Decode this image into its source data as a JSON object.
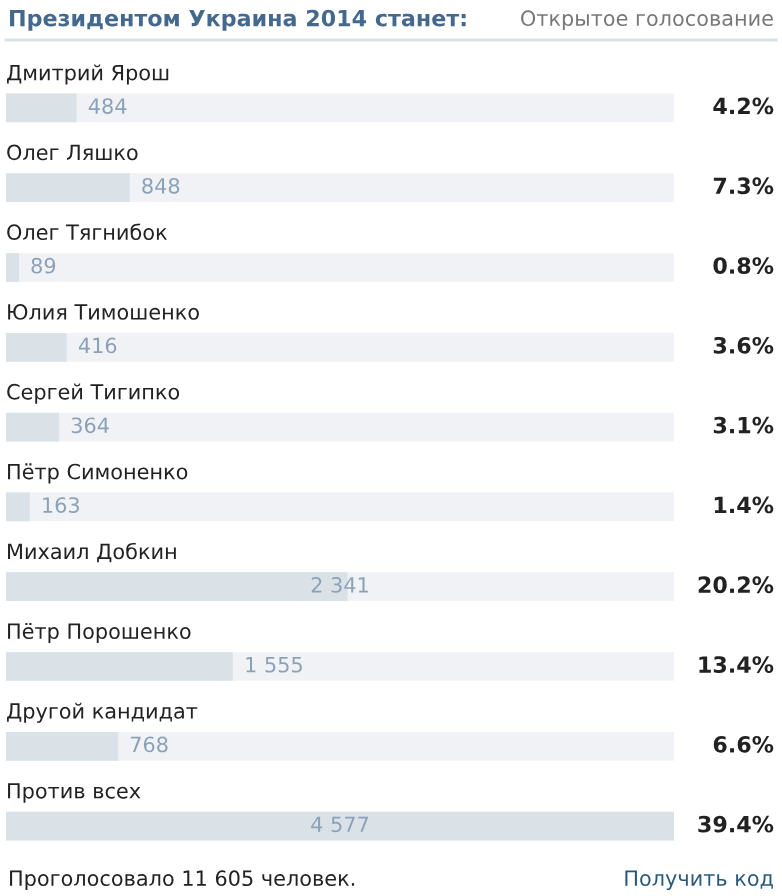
{
  "chart_data": {
    "type": "bar",
    "orientation": "horizontal",
    "title": "Президентом Украина 2014 станет:",
    "subtitle": "Открытое голосование",
    "categories": [
      "Дмитрий Ярош",
      "Олег Ляшко",
      "Олег Тягнибок",
      "Юлия Тимошенко",
      "Сергей Тигипко",
      "Пётр Симоненко",
      "Михаил Добкин",
      "Пётр Порошенко",
      "Другой кандидат",
      "Против всех"
    ],
    "values": [
      484,
      848,
      89,
      416,
      364,
      163,
      2341,
      1555,
      768,
      4577
    ],
    "value_labels": [
      "484",
      "848",
      "89",
      "416",
      "364",
      "163",
      "2 341",
      "1 555",
      "768",
      "4 577"
    ],
    "color": "#dae2e8",
    "xlim": [
      0,
      4577
    ],
    "tick_labels": false,
    "annotations": [
      "4.2%",
      "7.3%",
      "0.8%",
      "3.6%",
      "3.1%",
      "1.4%",
      "20.2%",
      "13.4%",
      "6.6%",
      "39.4%",
      "Проголосовало 11 605 человек.",
      "Получить код"
    ]
  }
}
